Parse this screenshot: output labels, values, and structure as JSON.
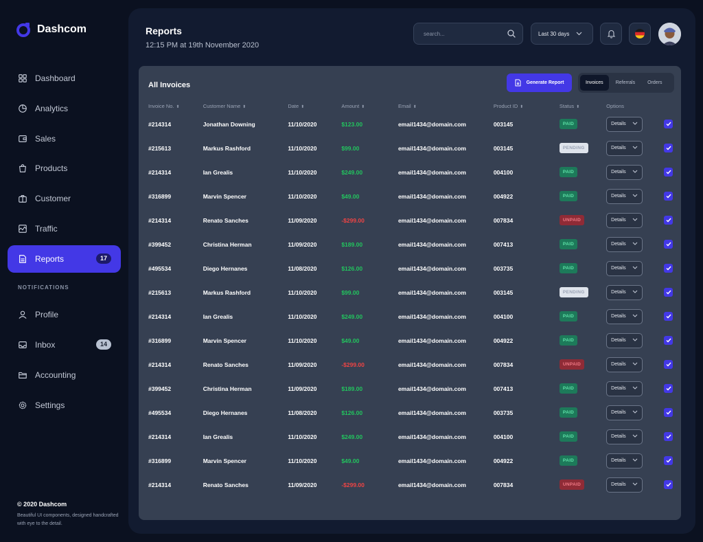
{
  "app": {
    "name": "Dashcom"
  },
  "sidebar": {
    "items": [
      {
        "label": "Dashboard",
        "icon": "grid-icon"
      },
      {
        "label": "Analytics",
        "icon": "pie-chart-icon"
      },
      {
        "label": "Sales",
        "icon": "wallet-icon"
      },
      {
        "label": "Products",
        "icon": "shopping-bag-icon"
      },
      {
        "label": "Customer",
        "icon": "briefcase-icon"
      },
      {
        "label": "Traffic",
        "icon": "activity-icon"
      },
      {
        "label": "Reports",
        "icon": "document-icon",
        "badge": "17",
        "active": true
      }
    ],
    "section_label": "NOTIFICATIONS",
    "items2": [
      {
        "label": "Profile",
        "icon": "user-icon"
      },
      {
        "label": "Inbox",
        "icon": "inbox-icon",
        "badge": "14"
      },
      {
        "label": "Accounting",
        "icon": "folders-icon"
      },
      {
        "label": "Settings",
        "icon": "gear-icon"
      }
    ],
    "footer": {
      "copyright": "© 2020 Dashcom",
      "tagline": "Beautiful UI components, designed handcrafted with eye to the detail."
    }
  },
  "header": {
    "title": "Reports",
    "subtitle": "12:15 PM at 19th November 2020",
    "search_placeholder": "search...",
    "range_label": "Last 30 days"
  },
  "card": {
    "title": "All Invoices",
    "generate_label": "Generate Report",
    "tabs": [
      "Invoices",
      "Referrals",
      "Orders"
    ],
    "active_tab": "Invoices",
    "columns": [
      "Invoice No.",
      "Customer Name",
      "Date",
      "Amount",
      "Email",
      "Product ID",
      "Status",
      "Options"
    ],
    "details_label": "Details",
    "rows": [
      {
        "invoice": "#214314",
        "name": "Jonathan Downing",
        "date": "11/10/2020",
        "amount": "$123.00",
        "sign": "pos",
        "email": "email1434@domain.com",
        "product": "003145",
        "status": "PAID"
      },
      {
        "invoice": "#215613",
        "name": "Markus Rashford",
        "date": "11/10/2020",
        "amount": "$99.00",
        "sign": "pos",
        "email": "email1434@domain.com",
        "product": "003145",
        "status": "PENDING"
      },
      {
        "invoice": "#214314",
        "name": "Ian Grealis",
        "date": "11/10/2020",
        "amount": "$249.00",
        "sign": "pos",
        "email": "email1434@domain.com",
        "product": "004100",
        "status": "PAID"
      },
      {
        "invoice": "#316899",
        "name": "Marvin Spencer",
        "date": "11/10/2020",
        "amount": "$49.00",
        "sign": "pos",
        "email": "email1434@domain.com",
        "product": "004922",
        "status": "PAID"
      },
      {
        "invoice": "#214314",
        "name": "Renato Sanches",
        "date": "11/09/2020",
        "amount": "-$299.00",
        "sign": "neg",
        "email": "email1434@domain.com",
        "product": "007834",
        "status": "UNPAID"
      },
      {
        "invoice": "#399452",
        "name": "Christina Herman",
        "date": "11/09/2020",
        "amount": "$189.00",
        "sign": "pos",
        "email": "email1434@domain.com",
        "product": "007413",
        "status": "PAID"
      },
      {
        "invoice": "#495534",
        "name": "Diego Hernanes",
        "date": "11/08/2020",
        "amount": "$126.00",
        "sign": "pos",
        "email": "email1434@domain.com",
        "product": "003735",
        "status": "PAID"
      },
      {
        "invoice": "#215613",
        "name": "Markus Rashford",
        "date": "11/10/2020",
        "amount": "$99.00",
        "sign": "pos",
        "email": "email1434@domain.com",
        "product": "003145",
        "status": "PENDING"
      },
      {
        "invoice": "#214314",
        "name": "Ian Grealis",
        "date": "11/10/2020",
        "amount": "$249.00",
        "sign": "pos",
        "email": "email1434@domain.com",
        "product": "004100",
        "status": "PAID"
      },
      {
        "invoice": "#316899",
        "name": "Marvin Spencer",
        "date": "11/10/2020",
        "amount": "$49.00",
        "sign": "pos",
        "email": "email1434@domain.com",
        "product": "004922",
        "status": "PAID"
      },
      {
        "invoice": "#214314",
        "name": "Renato Sanches",
        "date": "11/09/2020",
        "amount": "-$299.00",
        "sign": "neg",
        "email": "email1434@domain.com",
        "product": "007834",
        "status": "UNPAID"
      },
      {
        "invoice": "#399452",
        "name": "Christina Herman",
        "date": "11/09/2020",
        "amount": "$189.00",
        "sign": "pos",
        "email": "email1434@domain.com",
        "product": "007413",
        "status": "PAID"
      },
      {
        "invoice": "#495534",
        "name": "Diego Hernanes",
        "date": "11/08/2020",
        "amount": "$126.00",
        "sign": "pos",
        "email": "email1434@domain.com",
        "product": "003735",
        "status": "PAID"
      },
      {
        "invoice": "#214314",
        "name": "Ian Grealis",
        "date": "11/10/2020",
        "amount": "$249.00",
        "sign": "pos",
        "email": "email1434@domain.com",
        "product": "004100",
        "status": "PAID"
      },
      {
        "invoice": "#316899",
        "name": "Marvin Spencer",
        "date": "11/10/2020",
        "amount": "$49.00",
        "sign": "pos",
        "email": "email1434@domain.com",
        "product": "004922",
        "status": "PAID"
      },
      {
        "invoice": "#214314",
        "name": "Renato Sanches",
        "date": "11/09/2020",
        "amount": "-$299.00",
        "sign": "neg",
        "email": "email1434@domain.com",
        "product": "007834",
        "status": "UNPAID"
      }
    ]
  },
  "colors": {
    "accent": "#4338e6",
    "positive": "#22c55e",
    "negative": "#ef4444"
  }
}
